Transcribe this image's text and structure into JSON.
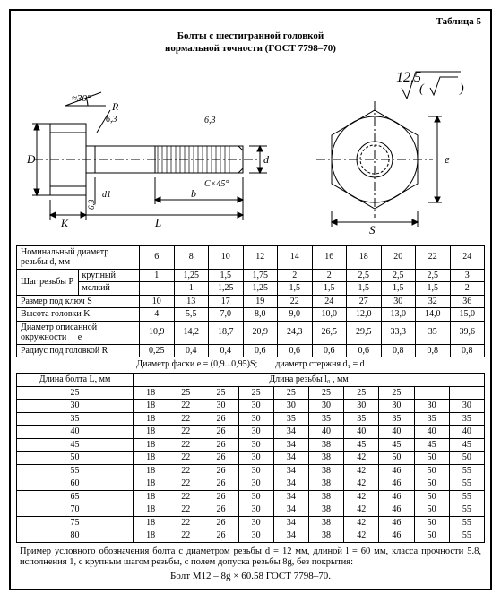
{
  "header": {
    "table_label": "Таблица 5",
    "title_l1": "Болты с шестигранной головкой",
    "title_l2": "нормальной точности (ГОСТ 7798–70)"
  },
  "diagram": {
    "angle": "≈30°",
    "R": "R",
    "r_val": "6,3",
    "D": "D",
    "d": "d",
    "d1": "d1",
    "chamfer": "C×45°",
    "b": "b",
    "K": "K",
    "L": "L",
    "S": "S",
    "e": "e",
    "ra": "12,5"
  },
  "t1": {
    "head_label": "Номинальный диаметр резьбы d, мм",
    "head_vals": [
      "6",
      "8",
      "10",
      "12",
      "14",
      "16",
      "18",
      "20",
      "22",
      "24"
    ],
    "pitch_label": "Шаг резьбы P",
    "pitch_coarse_lbl": "крупный",
    "pitch_fine_lbl": "мелкий",
    "pitch_coarse": [
      "1",
      "1,25",
      "1,5",
      "1,75",
      "2",
      "2",
      "2,5",
      "2,5",
      "2,5",
      "3"
    ],
    "pitch_fine": [
      "",
      "1",
      "1,25",
      "1,25",
      "1,5",
      "1,5",
      "1,5",
      "1,5",
      "1,5",
      "2"
    ],
    "rows": [
      {
        "label": "Размер под ключ S",
        "v": [
          "10",
          "13",
          "17",
          "19",
          "22",
          "24",
          "27",
          "30",
          "32",
          "36"
        ]
      },
      {
        "label": "Высота головки K",
        "v": [
          "4",
          "5,5",
          "7,0",
          "8,0",
          "9,0",
          "10,0",
          "12,0",
          "13,0",
          "14,0",
          "15,0"
        ]
      },
      {
        "label": "Диаметр описанной окружности     e",
        "v": [
          "10,9",
          "14,2",
          "18,7",
          "20,9",
          "24,3",
          "26,5",
          "29,5",
          "33,3",
          "35",
          "39,6"
        ]
      },
      {
        "label": "Радиус под головкой R",
        "v": [
          "0,25",
          "0,4",
          "0,4",
          "0,6",
          "0,6",
          "0,6",
          "0,6",
          "0,8",
          "0,8",
          "0,8"
        ]
      }
    ]
  },
  "note": {
    "left": "Диаметр фаски e = (0,9...0,95)S;",
    "right": "диаметр стержня d₁ = d"
  },
  "t2": {
    "left_head": "Длина болта L, мм",
    "right_head": "Длина резьбы l₀ , мм",
    "lengths": [
      "25",
      "30",
      "35",
      "40",
      "45",
      "50",
      "55",
      "60",
      "65",
      "70",
      "75",
      "80"
    ],
    "grid": [
      [
        "18",
        "25",
        "25",
        "25",
        "25",
        "25",
        "25",
        "25",
        "",
        ""
      ],
      [
        "18",
        "22",
        "30",
        "30",
        "30",
        "30",
        "30",
        "30",
        "30",
        "30"
      ],
      [
        "18",
        "22",
        "26",
        "30",
        "35",
        "35",
        "35",
        "35",
        "35",
        "35"
      ],
      [
        "18",
        "22",
        "26",
        "30",
        "34",
        "40",
        "40",
        "40",
        "40",
        "40"
      ],
      [
        "18",
        "22",
        "26",
        "30",
        "34",
        "38",
        "45",
        "45",
        "45",
        "45"
      ],
      [
        "18",
        "22",
        "26",
        "30",
        "34",
        "38",
        "42",
        "50",
        "50",
        "50"
      ],
      [
        "18",
        "22",
        "26",
        "30",
        "34",
        "38",
        "42",
        "46",
        "50",
        "55"
      ],
      [
        "18",
        "22",
        "26",
        "30",
        "34",
        "38",
        "42",
        "46",
        "50",
        "55"
      ],
      [
        "18",
        "22",
        "26",
        "30",
        "34",
        "38",
        "42",
        "46",
        "50",
        "55"
      ],
      [
        "18",
        "22",
        "26",
        "30",
        "34",
        "38",
        "42",
        "46",
        "50",
        "55"
      ],
      [
        "18",
        "22",
        "26",
        "30",
        "34",
        "38",
        "42",
        "46",
        "50",
        "55"
      ],
      [
        "18",
        "22",
        "26",
        "30",
        "34",
        "38",
        "42",
        "46",
        "50",
        "55"
      ]
    ]
  },
  "footer": {
    "line1": "Пример условного обозначения болта с диаметром резьбы d = 12 мм, длиной l = 60 мм, класса прочности 5.8, исполнения 1, с крупным шагом резьбы, с полем допуска резьбы 8g, без покрытия:",
    "line2": "Болт М12 – 8g × 60.58 ГОСТ 7798–70."
  }
}
